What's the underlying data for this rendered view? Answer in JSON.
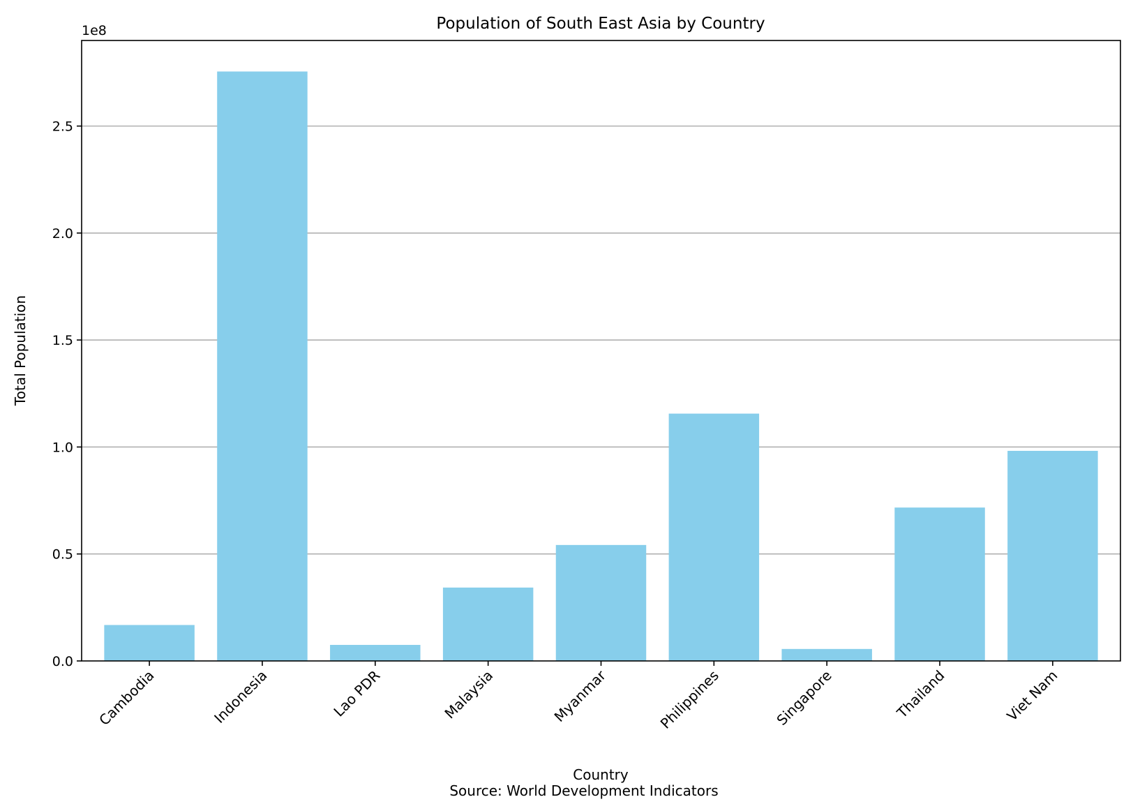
{
  "chart_data": {
    "type": "bar",
    "title": "Population of South East Asia by Country",
    "xlabel": "Country",
    "ylabel": "Total Population",
    "caption": "Source: World Development Indicators",
    "y_offset_label": "1e8",
    "y_scale": 100000000,
    "ylim": [
      0,
      290000000
    ],
    "yticks": [
      0,
      50000000,
      100000000,
      150000000,
      200000000,
      250000000
    ],
    "ytick_labels": [
      "0.0",
      "0.5",
      "1.0",
      "1.5",
      "2.0",
      "2.5"
    ],
    "grid": "y",
    "bar_color": "#87ceeb",
    "categories": [
      "Cambodia",
      "Indonesia",
      "Lao PDR",
      "Malaysia",
      "Myanmar",
      "Philippines",
      "Singapore",
      "Thailand",
      "Viet Nam"
    ],
    "values": [
      16800000,
      275500000,
      7500000,
      34300000,
      54200000,
      115600000,
      5600000,
      71700000,
      98200000
    ]
  }
}
